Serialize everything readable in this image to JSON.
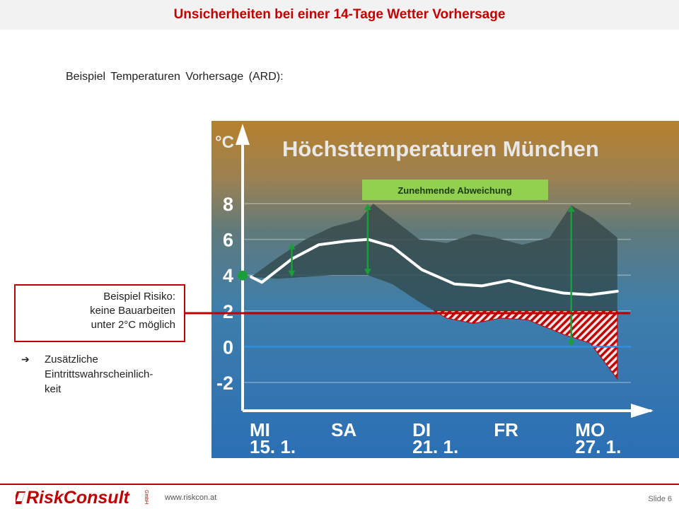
{
  "header": {
    "title": "Unsicherheiten bei einer 14-Tage Wetter Vorhersage"
  },
  "subtitle": "Beispiel Temperaturen Vorhersage (ARD):",
  "chart_data": {
    "type": "area",
    "title": "Höchsttemperaturen München",
    "ylabel": "°C",
    "ylim": [
      -2,
      8
    ],
    "yticks": [
      "8",
      "6",
      "4",
      "2",
      "0",
      "-2"
    ],
    "x_days": [
      0,
      14
    ],
    "xtick_labels": [
      {
        "day": "MI",
        "date": "15. 1.",
        "x": 0
      },
      {
        "day": "SA",
        "date": "",
        "x": 3
      },
      {
        "day": "DI",
        "date": "21. 1.",
        "x": 6
      },
      {
        "day": "FR",
        "date": "",
        "x": 9
      },
      {
        "day": "MO",
        "date": "27. 1.",
        "x": 12
      }
    ],
    "series": [
      {
        "values": [
          [
            0,
            3.9
          ],
          [
            0.4,
            3.6
          ],
          [
            1.5,
            4.9
          ],
          [
            2.5,
            5.7
          ],
          [
            3.5,
            5.9
          ],
          [
            4.3,
            6.0
          ],
          [
            5.2,
            5.6
          ],
          [
            6.3,
            4.3
          ],
          [
            7.5,
            3.5
          ],
          [
            8.5,
            3.4
          ],
          [
            9.5,
            3.7
          ],
          [
            10.5,
            3.3
          ],
          [
            11.5,
            3.0
          ],
          [
            12.5,
            2.9
          ],
          [
            13.5,
            3.1
          ]
        ]
      }
    ],
    "band_upper": [
      [
        0,
        3.9
      ],
      [
        1,
        5.0
      ],
      [
        2,
        6.0
      ],
      [
        3,
        6.7
      ],
      [
        4,
        7.1
      ],
      [
        4.5,
        8.0
      ],
      [
        5.0,
        7.4
      ],
      [
        6.2,
        6.0
      ],
      [
        7.2,
        5.8
      ],
      [
        8.2,
        6.3
      ],
      [
        9.0,
        6.1
      ],
      [
        10.0,
        5.7
      ],
      [
        11.0,
        6.1
      ],
      [
        11.8,
        7.9
      ],
      [
        12.6,
        7.2
      ],
      [
        13.5,
        6.1
      ]
    ],
    "band_lower": [
      [
        0,
        3.9
      ],
      [
        1,
        3.8
      ],
      [
        2,
        3.9
      ],
      [
        3,
        4.0
      ],
      [
        4,
        4.0
      ],
      [
        4.3,
        4.0
      ],
      [
        5.2,
        3.5
      ],
      [
        6.2,
        2.5
      ],
      [
        7.2,
        1.6
      ],
      [
        8.2,
        1.3
      ],
      [
        9.2,
        1.6
      ],
      [
        10.2,
        1.5
      ],
      [
        11.5,
        0.7
      ],
      [
        12.5,
        0.2
      ],
      [
        13.5,
        -1.8
      ]
    ],
    "risk_threshold": 2,
    "zero_line": 0,
    "annotation": "Zunehmende Abweichung",
    "deviation_markers": [
      {
        "x": 1.5,
        "low": 3.9,
        "high": 5.8
      },
      {
        "x": 4.3,
        "low": 4.0,
        "high": 8.0
      },
      {
        "x": 11.8,
        "low": 0,
        "high": 7.9
      }
    ],
    "start_point": {
      "x": 0,
      "y": 3.9
    },
    "colors": {
      "risk_line": "#c00000",
      "zero_line": "#2f8fe0",
      "arrows": "#1a9e3a",
      "annotation_bg": "#92d050",
      "hatch": "#c00000"
    }
  },
  "risk_box": {
    "lines": [
      "Beispiel Risiko:",
      "keine Bauarbeiten",
      "unter 2°C möglich"
    ]
  },
  "note": {
    "arrow": "➔",
    "lines": [
      "Zusätzliche",
      "Eintrittswahrscheinlich-",
      "keit"
    ]
  },
  "footer": {
    "logo": "RiskConsult",
    "logo_suffix": "GmbH",
    "website": "www.riskcon.at",
    "slide": "Slide 6"
  }
}
